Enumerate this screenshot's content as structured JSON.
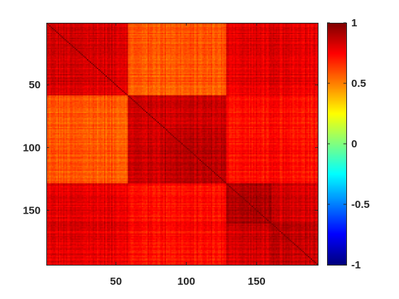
{
  "chart_data": {
    "type": "heatmap",
    "title": "",
    "xlabel": "",
    "ylabel": "",
    "size": 193,
    "x_range": [
      1,
      193
    ],
    "y_range": [
      1,
      193
    ],
    "y_direction": "reversed",
    "x_ticks": [
      50,
      100,
      150
    ],
    "y_ticks": [
      50,
      100,
      150
    ],
    "x_tick_labels": [
      "50",
      "100",
      "150"
    ],
    "y_tick_labels": [
      "50",
      "100",
      "150"
    ],
    "colormap": "jet",
    "clim": [
      -1,
      1
    ],
    "colorbar": {
      "ticks": [
        1,
        0.5,
        0,
        -0.5,
        -1
      ],
      "tick_labels": [
        "1",
        "0.5",
        "0",
        "-0.5",
        "-1"
      ]
    },
    "diagonal_value": 1,
    "blocks": [
      {
        "range": [
          1,
          58
        ],
        "within": 0.83
      },
      {
        "range": [
          59,
          128
        ],
        "within": 0.85
      },
      {
        "range": [
          129,
          193
        ],
        "within": 0.84
      }
    ],
    "sub_blocks": [
      {
        "range": [
          85,
          128
        ],
        "within": 0.88
      },
      {
        "range": [
          129,
          160
        ],
        "within": 0.91
      },
      {
        "range": [
          161,
          193
        ],
        "within": 0.87
      }
    ],
    "between_blocks": [
      {
        "rows": [
          1,
          58
        ],
        "cols": [
          59,
          128
        ],
        "value": 0.58
      },
      {
        "rows": [
          1,
          58
        ],
        "cols": [
          129,
          193
        ],
        "value": 0.8
      },
      {
        "rows": [
          59,
          128
        ],
        "cols": [
          129,
          193
        ],
        "value": 0.73
      }
    ],
    "grid": false
  }
}
